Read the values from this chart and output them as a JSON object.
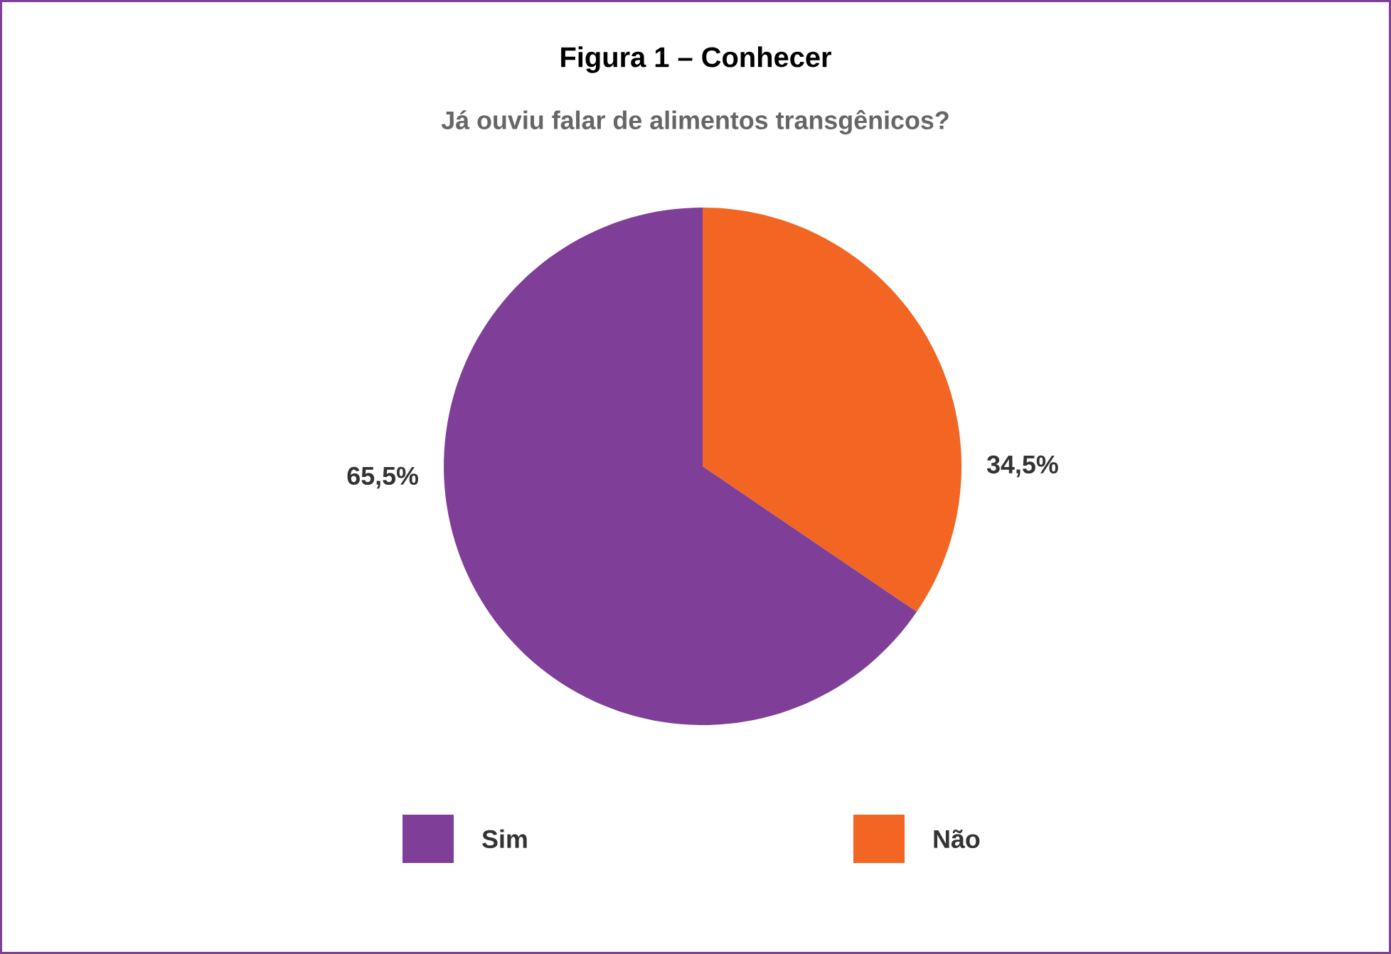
{
  "chart_data": {
    "type": "pie",
    "title": "Figura 1 – Conhecer",
    "subtitle": "Já ouviu falar de alimentos transgênicos?",
    "categories": [
      "Sim",
      "Não"
    ],
    "values": [
      65.5,
      34.5
    ],
    "colors": [
      "#7f3f98",
      "#f26522"
    ],
    "value_labels": [
      "65,5%",
      "34,5%"
    ],
    "legend": "bottom"
  }
}
